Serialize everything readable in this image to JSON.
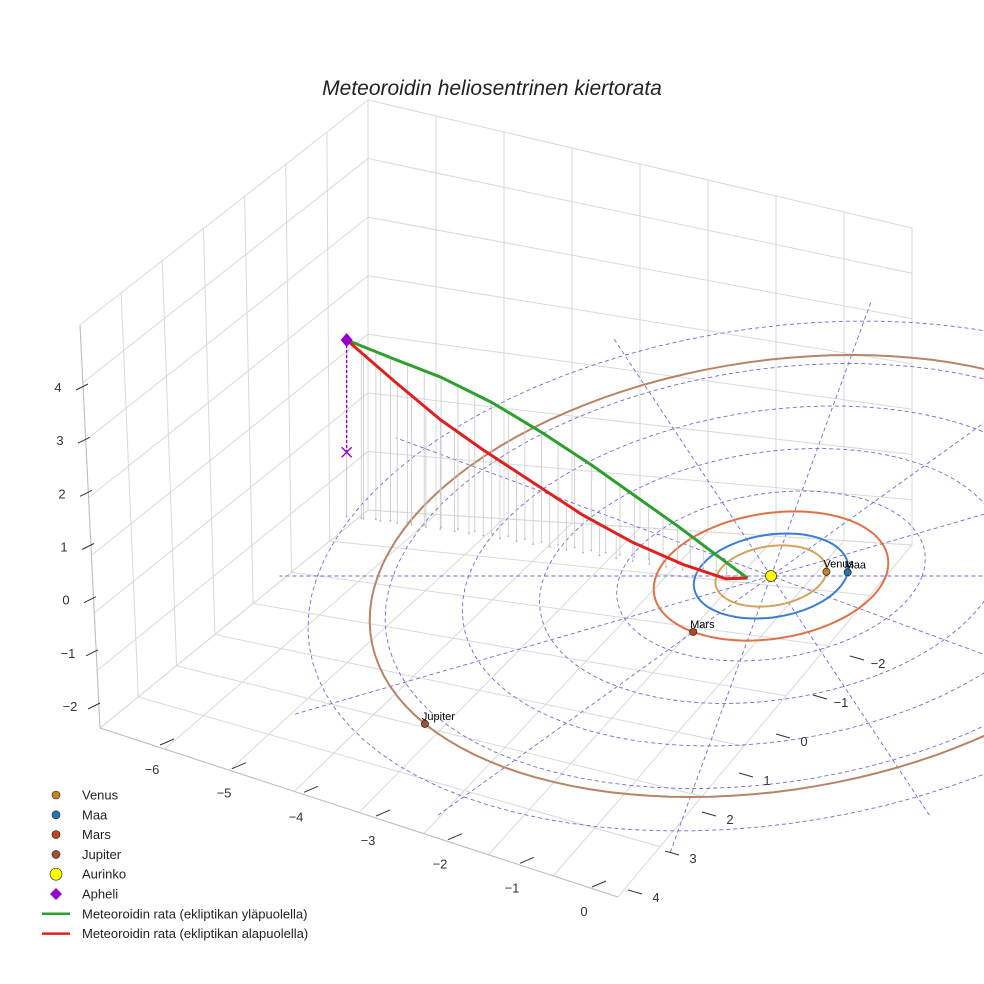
{
  "chart_data": {
    "type": "3d-line",
    "title": "Meteoroidin heliosentrinen kiertorata",
    "xlabel": "",
    "ylabel": "",
    "zlabel": "",
    "x_ticks": [
      "−6",
      "−5",
      "−4",
      "−3",
      "−2",
      "−1",
      "0"
    ],
    "y_ticks": [
      "−2",
      "−1",
      "0",
      "1",
      "2",
      "3",
      "4"
    ],
    "z_ticks": [
      "−2",
      "−1",
      "0",
      "1",
      "2",
      "3",
      "4"
    ],
    "grid": true,
    "legend_position": "bottom-left",
    "planets": [
      {
        "name": "Venus",
        "label": "Venus",
        "orbit_radius_au": 0.72,
        "color": "#d4a35c",
        "marker_color": "#c8822a"
      },
      {
        "name": "Maa",
        "label": "Maa",
        "orbit_radius_au": 1.0,
        "color": "#3a7dd4",
        "marker_color": "#1f77b4"
      },
      {
        "name": "Mars",
        "label": "Mars",
        "orbit_radius_au": 1.52,
        "color": "#e07048",
        "marker_color": "#c0441a"
      },
      {
        "name": "Jupiter",
        "label": "Jupiter",
        "orbit_radius_au": 5.2,
        "color": "#b98465",
        "marker_color": "#a0522d"
      }
    ],
    "sun": {
      "name": "Aurinko",
      "x": 0,
      "y": 0,
      "z": 0,
      "color": "#ffff00"
    },
    "aphelion": {
      "name": "Apheli",
      "x": -5.9,
      "y": -1.4,
      "z": 3.3,
      "color": "#9400d3"
    },
    "series": [
      {
        "name": "Meteoroidin rata (ekliptikan yläpuolella)",
        "color": "#2ca02c",
        "points": [
          [
            -5.9,
            -1.4,
            3.3
          ],
          [
            -5.3,
            -1.3,
            3.05
          ],
          [
            -4.6,
            -1.15,
            2.8
          ],
          [
            -3.9,
            -1.0,
            2.45
          ],
          [
            -3.2,
            -0.8,
            2.05
          ],
          [
            -2.5,
            -0.6,
            1.6
          ],
          [
            -1.9,
            -0.45,
            1.15
          ],
          [
            -1.3,
            -0.3,
            0.7
          ],
          [
            -0.75,
            -0.12,
            0.3
          ],
          [
            -0.3,
            0.05,
            0.0
          ]
        ]
      },
      {
        "name": "Meteoroidin rata (ekliptikan alapuolella)",
        "color": "#e0201f",
        "points": [
          [
            -5.9,
            -1.4,
            3.3
          ],
          [
            -5.2,
            -1.25,
            2.6
          ],
          [
            -4.6,
            -1.1,
            2.05
          ],
          [
            -4.0,
            -0.95,
            1.6
          ],
          [
            -3.3,
            -0.75,
            1.15
          ],
          [
            -2.6,
            -0.55,
            0.7
          ],
          [
            -1.9,
            -0.35,
            0.35
          ],
          [
            -1.2,
            -0.15,
            0.1
          ],
          [
            -0.6,
            0.0,
            -0.05
          ],
          [
            -0.3,
            0.05,
            0.0
          ]
        ]
      }
    ],
    "legend": [
      {
        "label": "Venus",
        "kind": "dot",
        "color": "#c8822a"
      },
      {
        "label": "Maa",
        "kind": "dot",
        "color": "#1f77b4"
      },
      {
        "label": "Mars",
        "kind": "dot",
        "color": "#c0441a"
      },
      {
        "label": "Jupiter",
        "kind": "dot",
        "color": "#a0522d"
      },
      {
        "label": "Aurinko",
        "kind": "sun",
        "color": "#ffff00"
      },
      {
        "label": "Apheli",
        "kind": "diamond",
        "color": "#9400d3"
      },
      {
        "label": "Meteoroidin rata (ekliptikan yläpuolella)",
        "kind": "line",
        "color": "#2ca02c"
      },
      {
        "label": "Meteoroidin rata (ekliptikan alapuolella)",
        "kind": "line",
        "color": "#e0201f"
      }
    ]
  }
}
